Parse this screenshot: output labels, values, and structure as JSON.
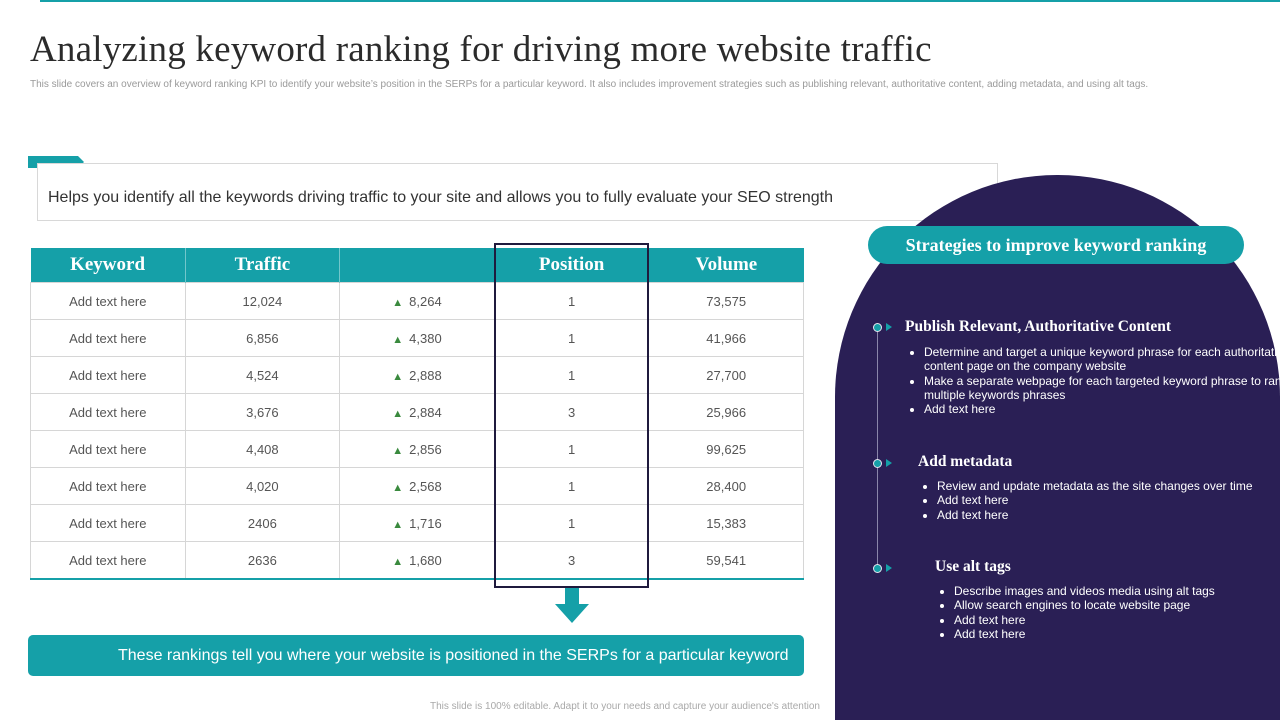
{
  "title": "Analyzing keyword ranking for driving more website traffic",
  "subtitle": "This slide covers an overview of keyword ranking KPI to identify your website’s position in the SERPs  for a particular keyword. It also includes improvement strategies such as publishing relevant, authoritative content,  adding metadata, and using alt tags.",
  "callout_text": "Helps you identify all the keywords driving traffic to your site and allows you to fully  evaluate your SEO strength",
  "table": {
    "headers": [
      "Keyword",
      "Traffic",
      "",
      "Position",
      "Volume"
    ],
    "rows": [
      [
        "Add text here",
        "12,024",
        "8,264",
        "1",
        "73,575"
      ],
      [
        "Add text here",
        "6,856",
        "4,380",
        "1",
        "41,966"
      ],
      [
        "Add text here",
        "4,524",
        "2,888",
        "1",
        "27,700"
      ],
      [
        "Add text here",
        "3,676",
        "2,884",
        "3",
        "25,966"
      ],
      [
        "Add text here",
        "4,408",
        "2,856",
        "1",
        "99,625"
      ],
      [
        "Add text here",
        "4,020",
        "2,568",
        "1",
        "28,400"
      ],
      [
        "Add text here",
        "2406",
        "1,716",
        "1",
        "15,383"
      ],
      [
        "Add text here",
        "2636",
        "1,680",
        "3",
        "59,541"
      ]
    ],
    "trend_icon": "triangle-up-icon"
  },
  "bottom_bar_text": "These rankings tell you where your website is positioned in the SERPs for a particular keyword",
  "footer_text": "This slide is 100% editable. Adapt it to your needs and capture your audience's attention",
  "panel": {
    "heading": "Strategies to improve keyword ranking",
    "sections": [
      {
        "title": "Publish Relevant, Authoritative Content",
        "items": [
          "Determine and target a unique keyword phrase for each authoritative content page on the company website",
          "Make  a separate webpage for each targeted keyword phrase to rank multiple keywords phrases",
          "Add text here"
        ]
      },
      {
        "title": "Add metadata",
        "items": [
          "Review and update metadata as the site changes over time",
          "Add text here",
          "Add text here"
        ]
      },
      {
        "title": "Use alt tags",
        "items": [
          "Describe images and videos media using alt tags",
          "Allow search engines to locate website page",
          "Add text here",
          "Add text here"
        ]
      }
    ]
  },
  "colors": {
    "accent": "#15a0a8",
    "panel": "#2a1f55",
    "trend": "#3a8a3e"
  }
}
